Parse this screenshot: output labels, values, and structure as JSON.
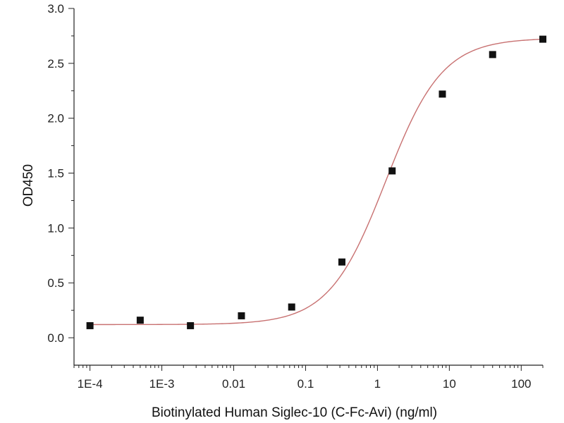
{
  "chart_data": {
    "type": "scatter",
    "title": "",
    "xlabel": "Biotinylated Human Siglec-10 (C-Fc-Avi) (ng/ml)",
    "ylabel": "OD450",
    "xscale": "log",
    "xlim": [
      6e-05,
      200
    ],
    "ylim": [
      -0.25,
      3.0
    ],
    "x_ticks": [
      {
        "value": 0.0001,
        "label": "1E-4"
      },
      {
        "value": 0.001,
        "label": "1E-3"
      },
      {
        "value": 0.01,
        "label": "0.01"
      },
      {
        "value": 0.1,
        "label": "0.1"
      },
      {
        "value": 1,
        "label": "1"
      },
      {
        "value": 10,
        "label": "10"
      },
      {
        "value": 100,
        "label": "100"
      }
    ],
    "y_ticks": [
      {
        "value": 0.0,
        "label": "0.0"
      },
      {
        "value": 0.5,
        "label": "0.5"
      },
      {
        "value": 1.0,
        "label": "1.0"
      },
      {
        "value": 1.5,
        "label": "1.5"
      },
      {
        "value": 2.0,
        "label": "2.0"
      },
      {
        "value": 2.5,
        "label": "2.5"
      },
      {
        "value": 3.0,
        "label": "3.0"
      }
    ],
    "grid": false,
    "legend": "none",
    "series": [
      {
        "x": [
          0.0001,
          0.0005,
          0.0025,
          0.0128,
          0.064,
          0.32,
          1.6,
          8,
          40,
          200
        ],
        "y": [
          0.11,
          0.16,
          0.11,
          0.2,
          0.28,
          0.69,
          1.52,
          2.22,
          2.58,
          2.72
        ],
        "marker": "square",
        "color": "#111111"
      }
    ],
    "fit_curve": {
      "model": "4PL",
      "bottom": 0.12,
      "top": 2.73,
      "ec50": 1.3,
      "hill": 1.1,
      "color": "#c87171"
    }
  }
}
